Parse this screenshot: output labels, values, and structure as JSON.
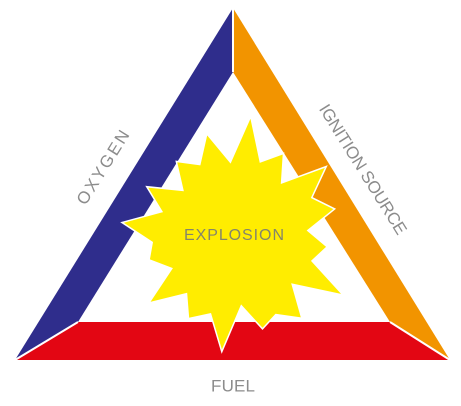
{
  "nodes": [
    {
      "label": "OXYGEN"
    },
    {
      "label": "IGNITION SOURCE"
    },
    {
      "label": "FUEL"
    }
  ],
  "center": {
    "label": "EXPLOSION"
  }
}
